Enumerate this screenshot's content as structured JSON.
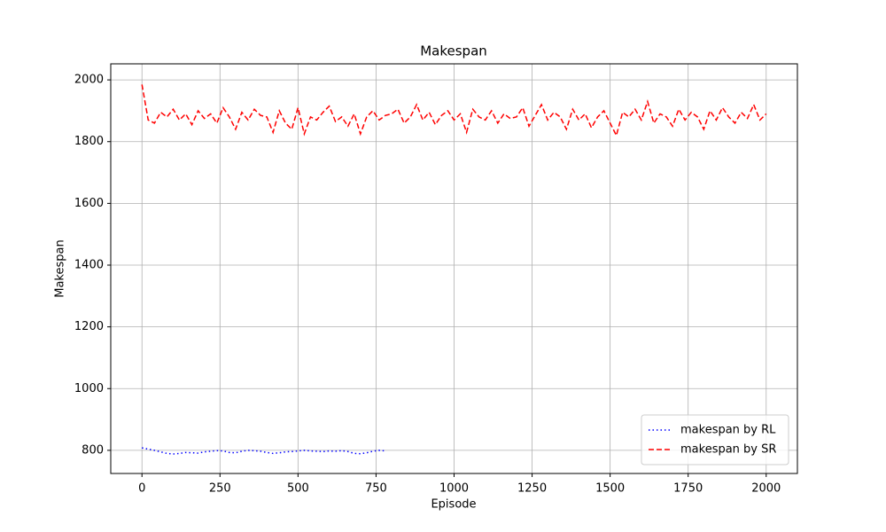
{
  "chart_data": {
    "type": "line",
    "title": "Makespan",
    "xlabel": "Episode",
    "ylabel": "Makespan",
    "xlim": [
      -100,
      2100
    ],
    "xticks": [
      0,
      250,
      500,
      750,
      1000,
      1250,
      1500,
      1750,
      2000
    ],
    "ylim": [
      725,
      2052
    ],
    "yticks": [
      800,
      1000,
      1200,
      1400,
      1600,
      1800,
      2000
    ],
    "grid": true,
    "legend": "lower right",
    "series": [
      {
        "name": "makespan by RL",
        "color": "#0000ff",
        "linestyle": "dotted",
        "x": [
          0,
          20,
          40,
          60,
          80,
          100,
          120,
          140,
          160,
          180,
          200,
          220,
          240,
          260,
          280,
          300,
          320,
          340,
          360,
          380,
          400,
          420,
          440,
          460,
          480,
          500,
          520,
          540,
          560,
          580,
          600,
          620,
          640,
          660,
          680,
          700,
          720,
          740,
          760,
          780
        ],
        "values": [
          808,
          804,
          800,
          795,
          790,
          788,
          790,
          793,
          792,
          791,
          795,
          797,
          799,
          798,
          793,
          792,
          797,
          800,
          799,
          797,
          793,
          790,
          792,
          795,
          796,
          798,
          800,
          798,
          797,
          796,
          798,
          797,
          799,
          796,
          790,
          789,
          792,
          797,
          800,
          798
        ]
      },
      {
        "name": "makespan by SR",
        "color": "#ff0000",
        "linestyle": "dashed",
        "x": [
          0,
          20,
          40,
          60,
          80,
          100,
          120,
          140,
          160,
          180,
          200,
          220,
          240,
          260,
          280,
          300,
          320,
          340,
          360,
          380,
          400,
          420,
          440,
          460,
          480,
          500,
          520,
          540,
          560,
          580,
          600,
          620,
          640,
          660,
          680,
          700,
          720,
          740,
          760,
          780,
          800,
          820,
          840,
          860,
          880,
          900,
          920,
          940,
          960,
          980,
          1000,
          1020,
          1040,
          1060,
          1080,
          1100,
          1120,
          1140,
          1160,
          1180,
          1200,
          1220,
          1240,
          1260,
          1280,
          1300,
          1320,
          1340,
          1360,
          1380,
          1400,
          1420,
          1440,
          1460,
          1480,
          1500,
          1520,
          1540,
          1560,
          1580,
          1600,
          1620,
          1640,
          1660,
          1680,
          1700,
          1720,
          1740,
          1760,
          1780,
          1800,
          1820,
          1840,
          1860,
          1880,
          1900,
          1920,
          1940,
          1960,
          1980,
          2000
        ],
        "values": [
          1985,
          1870,
          1860,
          1895,
          1880,
          1905,
          1870,
          1890,
          1855,
          1900,
          1875,
          1890,
          1860,
          1910,
          1880,
          1840,
          1895,
          1870,
          1905,
          1885,
          1880,
          1830,
          1900,
          1860,
          1840,
          1910,
          1825,
          1880,
          1870,
          1895,
          1915,
          1865,
          1880,
          1850,
          1890,
          1825,
          1880,
          1900,
          1870,
          1885,
          1890,
          1905,
          1860,
          1880,
          1920,
          1870,
          1895,
          1855,
          1885,
          1900,
          1870,
          1890,
          1830,
          1905,
          1880,
          1870,
          1900,
          1860,
          1890,
          1875,
          1880,
          1910,
          1850,
          1885,
          1920,
          1870,
          1895,
          1880,
          1840,
          1905,
          1870,
          1890,
          1845,
          1880,
          1900,
          1860,
          1820,
          1895,
          1880,
          1905,
          1870,
          1930,
          1860,
          1890,
          1880,
          1850,
          1905,
          1870,
          1895,
          1880,
          1840,
          1900,
          1870,
          1910,
          1880,
          1860,
          1895,
          1875,
          1920,
          1870,
          1890
        ]
      }
    ]
  }
}
